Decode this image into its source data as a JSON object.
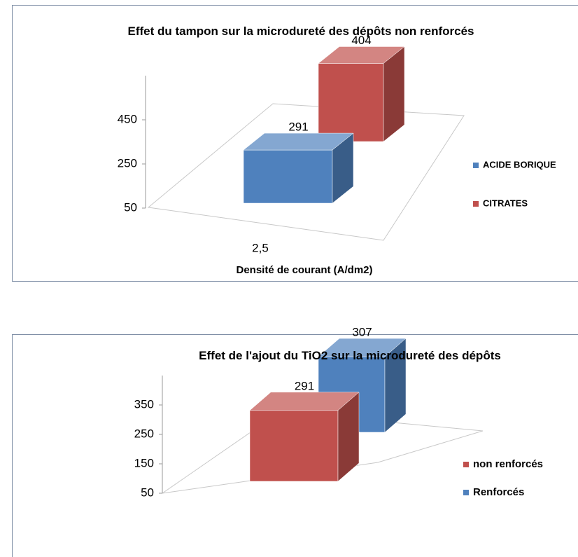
{
  "chart_data": [
    {
      "type": "bar3d",
      "title": "Effet du  tampon sur la microdureté  des dépôts non renforcés",
      "categories": [
        "2,5"
      ],
      "xlabel": "Densité de courant (A/dm2)",
      "series": [
        {
          "name": "ACIDE BORIQUE",
          "color": "#4f81bd",
          "values": [
            291
          ]
        },
        {
          "name": "CITRATES",
          "color": "#c0504d",
          "values": [
            404
          ]
        }
      ],
      "ylim": [
        50,
        650
      ],
      "yticks": [
        50,
        250,
        450
      ],
      "legend": "right"
    },
    {
      "type": "bar3d",
      "title": "Effet  de l'ajout du TiO2 sur la microdureté  des dépôts",
      "categories": [
        null
      ],
      "series": [
        {
          "name": "non renforcés",
          "color": "#c0504d",
          "values": [
            291
          ]
        },
        {
          "name": "Renforcés",
          "color": "#4f81bd",
          "values": [
            307
          ]
        }
      ],
      "ylim": [
        50,
        450
      ],
      "yticks": [
        50,
        150,
        250,
        350
      ],
      "legend": "right"
    }
  ]
}
